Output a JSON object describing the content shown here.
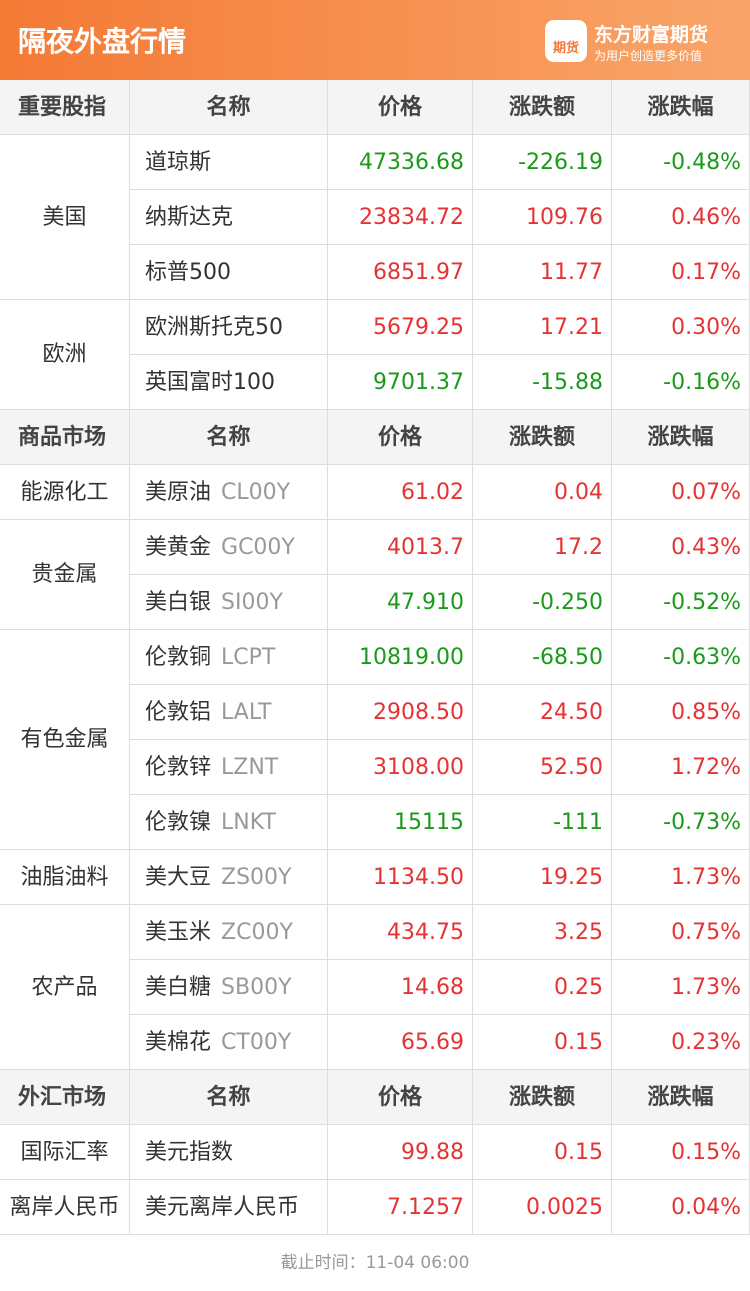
{
  "header": {
    "title": "隔夜外盘行情",
    "logo": "期货",
    "brand": "东方财富期货",
    "slogan": "为用户创造更多价值"
  },
  "sections": [
    {
      "columns": [
        "重要股指",
        "名称",
        "价格",
        "涨跌额",
        "涨跌幅"
      ],
      "groups": [
        {
          "label": "美国",
          "rows": [
            {
              "name": "道琼斯",
              "price": "47336.68",
              "change": "-226.19",
              "pct": "-0.48%"
            },
            {
              "name": "纳斯达克",
              "price": "23834.72",
              "change": "109.76",
              "pct": "0.46%"
            },
            {
              "name": "标普500",
              "price": "6851.97",
              "change": "11.77",
              "pct": "0.17%"
            }
          ]
        },
        {
          "label": "欧洲",
          "rows": [
            {
              "name": "欧洲斯托克50",
              "price": "5679.25",
              "change": "17.21",
              "pct": "0.30%"
            },
            {
              "name": "英国富时100",
              "price": "9701.37",
              "change": "-15.88",
              "pct": "-0.16%"
            }
          ]
        }
      ]
    },
    {
      "columns": [
        "商品市场",
        "名称",
        "价格",
        "涨跌额",
        "涨跌幅"
      ],
      "groups": [
        {
          "label": "能源化工",
          "rows": [
            {
              "name": "美原油",
              "code": "CL00Y",
              "price": "61.02",
              "change": "0.04",
              "pct": "0.07%"
            }
          ]
        },
        {
          "label": "贵金属",
          "rows": [
            {
              "name": "美黄金",
              "code": "GC00Y",
              "price": "4013.7",
              "change": "17.2",
              "pct": "0.43%"
            },
            {
              "name": "美白银",
              "code": "SI00Y",
              "price": "47.910",
              "change": "-0.250",
              "pct": "-0.52%"
            }
          ]
        },
        {
          "label": "有色金属",
          "rows": [
            {
              "name": "伦敦铜",
              "code": "LCPT",
              "price": "10819.00",
              "change": "-68.50",
              "pct": "-0.63%"
            },
            {
              "name": "伦敦铝",
              "code": "LALT",
              "price": "2908.50",
              "change": "24.50",
              "pct": "0.85%"
            },
            {
              "name": "伦敦锌",
              "code": "LZNT",
              "price": "3108.00",
              "change": "52.50",
              "pct": "1.72%"
            },
            {
              "name": "伦敦镍",
              "code": "LNKT",
              "price": "15115",
              "change": "-111",
              "pct": "-0.73%"
            }
          ]
        },
        {
          "label": "油脂油料",
          "rows": [
            {
              "name": "美大豆",
              "code": "ZS00Y",
              "price": "1134.50",
              "change": "19.25",
              "pct": "1.73%"
            }
          ]
        },
        {
          "label": "农产品",
          "rows": [
            {
              "name": "美玉米",
              "code": "ZC00Y",
              "price": "434.75",
              "change": "3.25",
              "pct": "0.75%"
            },
            {
              "name": "美白糖",
              "code": "SB00Y",
              "price": "14.68",
              "change": "0.25",
              "pct": "1.73%"
            },
            {
              "name": "美棉花",
              "code": "CT00Y",
              "price": "65.69",
              "change": "0.15",
              "pct": "0.23%"
            }
          ]
        }
      ]
    },
    {
      "columns": [
        "外汇市场",
        "名称",
        "价格",
        "涨跌额",
        "涨跌幅"
      ],
      "groups": [
        {
          "label": "国际汇率",
          "rows": [
            {
              "name": "美元指数",
              "price": "99.88",
              "change": "0.15",
              "pct": "0.15%"
            }
          ]
        },
        {
          "label": "离岸人民币",
          "rows": [
            {
              "name": "美元离岸人民币",
              "price": "7.1257",
              "change": "0.0025",
              "pct": "0.04%"
            }
          ]
        }
      ]
    }
  ],
  "footer": "截止时间：11-04 06:00"
}
